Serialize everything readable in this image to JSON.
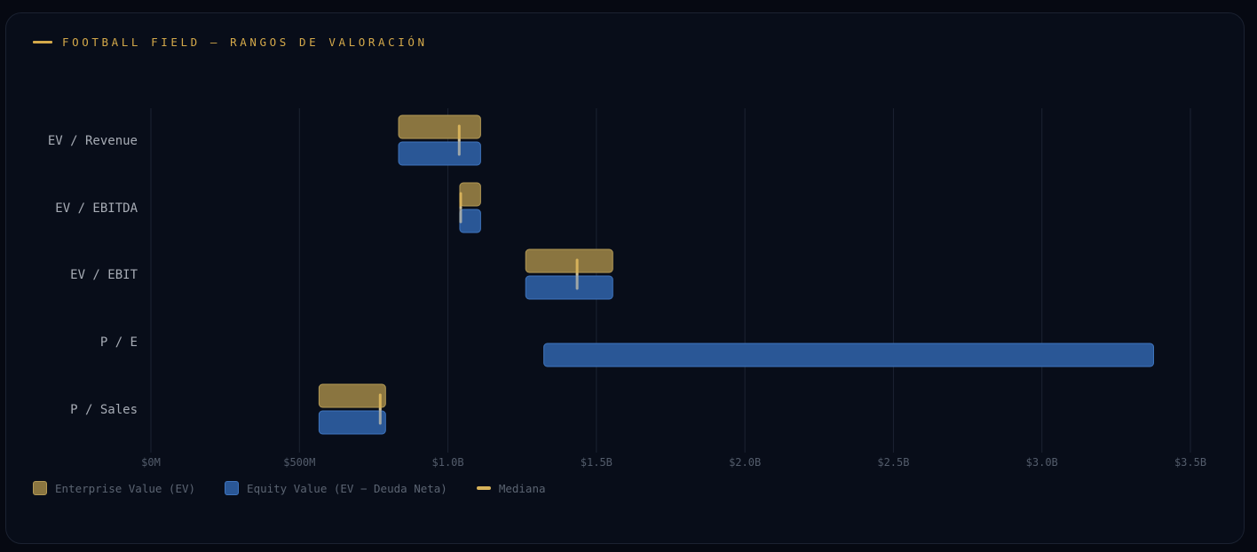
{
  "header": {
    "title": "FOOTBALL FIELD — RANGOS DE VALORACIÓN"
  },
  "colors": {
    "accent": "#d4a94a",
    "ev_fill": "#8a7540",
    "ev_stroke": "#b39955",
    "equity_fill": "#2a5796",
    "equity_stroke": "#3f74bd",
    "median": "#d7b25a",
    "grid": "#1c2332",
    "label": "#a7acb5",
    "tick": "#535c6b"
  },
  "legend": {
    "ev_label": "Enterprise Value (EV)",
    "equity_label": "Equity Value (EV − Deuda Neta)",
    "median_label": "Mediana"
  },
  "chart_data": {
    "type": "bar",
    "orientation": "horizontal",
    "subtype": "floating-range",
    "units": "M",
    "xlim": [
      0,
      3500
    ],
    "xticks": [
      0,
      500,
      1000,
      1500,
      2000,
      2500,
      3000,
      3500
    ],
    "xtick_labels": [
      "$0M",
      "$500M",
      "$1.0B",
      "$1.5B",
      "$2.0B",
      "$2.5B",
      "$3.0B",
      "$3.5B"
    ],
    "grid": true,
    "legend_position": "bottom-left",
    "categories": [
      "EV / Revenue",
      "EV / EBITDA",
      "EV / EBIT",
      "P / E",
      "P / Sales"
    ],
    "series": [
      {
        "name": "Enterprise Value (EV)",
        "ranges": [
          [
            834,
            1110
          ],
          [
            1040,
            1110
          ],
          [
            1262,
            1555
          ],
          null,
          [
            566,
            790
          ]
        ]
      },
      {
        "name": "Equity Value (EV − Deuda Neta)",
        "ranges": [
          [
            834,
            1110
          ],
          [
            1040,
            1110
          ],
          [
            1262,
            1555
          ],
          [
            1323,
            3376
          ],
          [
            566,
            790
          ]
        ]
      }
    ],
    "medians": [
      {
        "ev": 1038,
        "equity": 1038
      },
      {
        "ev": 1043,
        "equity": 1043
      },
      {
        "ev": 1435,
        "equity": 1435
      },
      {
        "ev": null,
        "equity": null
      },
      {
        "ev": 772,
        "equity": 772
      }
    ]
  }
}
